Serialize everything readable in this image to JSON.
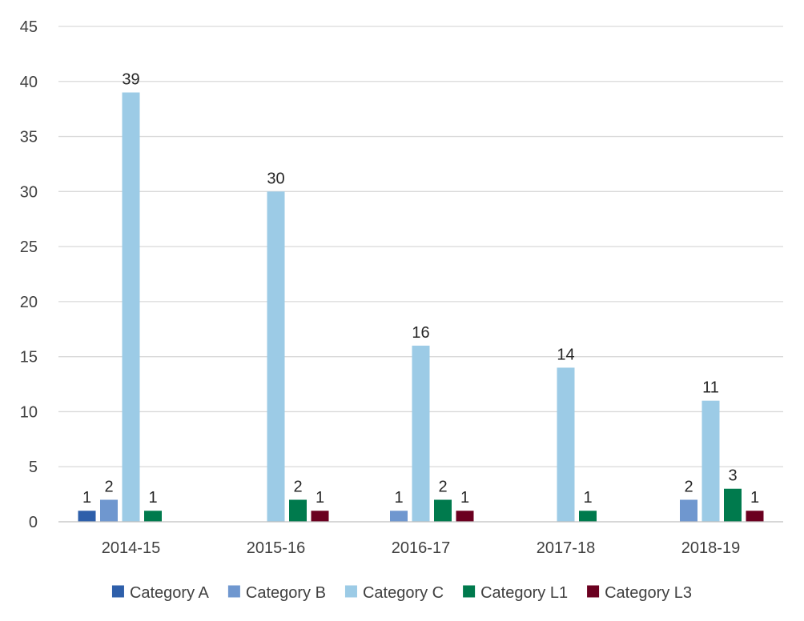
{
  "chart_data": {
    "type": "bar",
    "title": "",
    "xlabel": "",
    "ylabel": "",
    "ylim": [
      0,
      45
    ],
    "ytick_step": 5,
    "grid": true,
    "legend_position": "bottom",
    "categories": [
      "2014-15",
      "2015-16",
      "2016-17",
      "2017-18",
      "2018-19"
    ],
    "series": [
      {
        "name": "Category A",
        "color": "#2e5faa",
        "values": [
          1,
          null,
          null,
          null,
          null
        ]
      },
      {
        "name": "Category B",
        "color": "#6f97cf",
        "values": [
          2,
          null,
          1,
          null,
          2
        ]
      },
      {
        "name": "Category C",
        "color": "#9ccbe6",
        "values": [
          39,
          30,
          16,
          14,
          11
        ]
      },
      {
        "name": "Category L1",
        "color": "#007a4d",
        "values": [
          1,
          2,
          2,
          1,
          3
        ]
      },
      {
        "name": "Category L3",
        "color": "#6b0020",
        "values": [
          null,
          1,
          1,
          null,
          1
        ]
      }
    ]
  }
}
